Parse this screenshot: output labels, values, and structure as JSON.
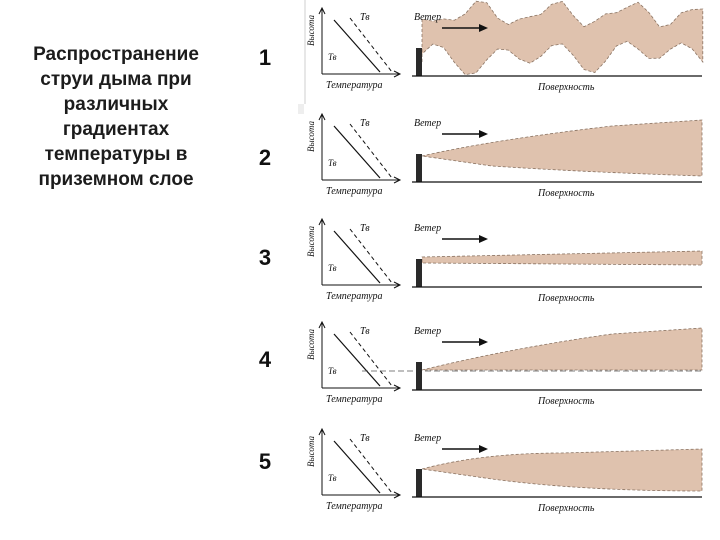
{
  "title": "Распространение\nструи дыма при\nразличных\nградиентах\nтемпературы в\nприземном слое",
  "colors": {
    "plume": "#dfc2ae",
    "ink": "#111111",
    "text": "#1c1c1c"
  },
  "panels": [
    {
      "number": "1",
      "ylabel": "Высота",
      "xlabel": "Температура",
      "ta_label": "Тв",
      "tb_label": "Тв",
      "wind_label": "Ветер",
      "ground_label": "Поверхность"
    },
    {
      "number": "2",
      "ylabel": "Высота",
      "xlabel": "Температура",
      "ta_label": "Тв",
      "tb_label": "Тв",
      "wind_label": "Ветер",
      "ground_label": "Поверхность"
    },
    {
      "number": "3",
      "ylabel": "Высота",
      "xlabel": "Температура",
      "ta_label": "Тв",
      "tb_label": "Тв",
      "wind_label": "Ветер",
      "ground_label": "Поверхность"
    },
    {
      "number": "4",
      "ylabel": "Высота",
      "xlabel": "Температура",
      "ta_label": "Тв",
      "tb_label": "Тв",
      "wind_label": "Ветер",
      "ground_label": "Поверхность"
    },
    {
      "number": "5",
      "ylabel": "Высота",
      "xlabel": "Температура",
      "ta_label": "Тв",
      "tb_label": "Тв",
      "wind_label": "Ветер",
      "ground_label": "Поверхность"
    }
  ]
}
